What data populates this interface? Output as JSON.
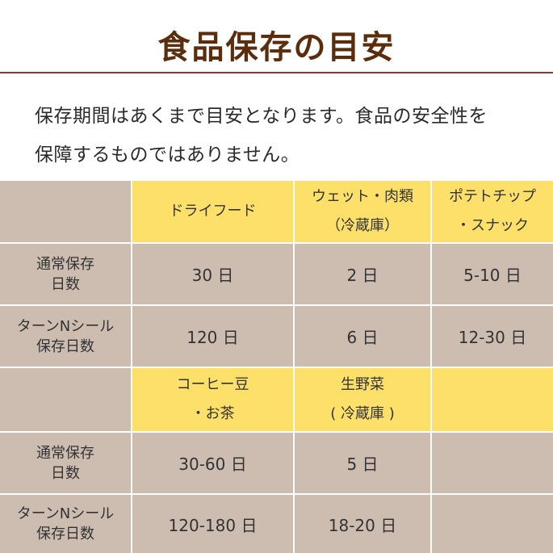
{
  "title": "食品保存の目安",
  "note": {
    "line1": "保存期間はあくまで目安となります。食品の安全性を",
    "line2": "保障するものではありません。"
  },
  "table1": {
    "headers": [
      {
        "line1": "ドライフード",
        "line2": ""
      },
      {
        "line1": "ウェット・肉類",
        "line2": "（冷蔵庫）"
      },
      {
        "line1": "ポテトチップ",
        "line2": "・スナック"
      }
    ],
    "rows": [
      {
        "label1": "通常保存",
        "label2": "日数",
        "values": [
          "30 日",
          "2 日",
          "5-10 日"
        ]
      },
      {
        "label1": "ターンNシール",
        "label2": "保存日数",
        "values": [
          "120 日",
          "6 日",
          "12-30 日"
        ]
      }
    ]
  },
  "table2": {
    "headers": [
      {
        "line1": "コーヒー豆",
        "line2": "・お茶"
      },
      {
        "line1": "生野菜",
        "line2": "( 冷蔵庫 )"
      },
      {
        "line1": "",
        "line2": ""
      }
    ],
    "rows": [
      {
        "label1": "通常保存",
        "label2": "日数",
        "values": [
          "30-60 日",
          "5 日",
          ""
        ]
      },
      {
        "label1": "ターンNシール",
        "label2": "保存日数",
        "values": [
          "120-180 日",
          "18-20 日",
          ""
        ]
      }
    ]
  },
  "colors": {
    "title": "#5a2d0c",
    "rule": "#8b3a2a",
    "header_fill": "#fde06a",
    "cell_fill": "#cdbdb1",
    "grid_line": "#ffffff"
  }
}
